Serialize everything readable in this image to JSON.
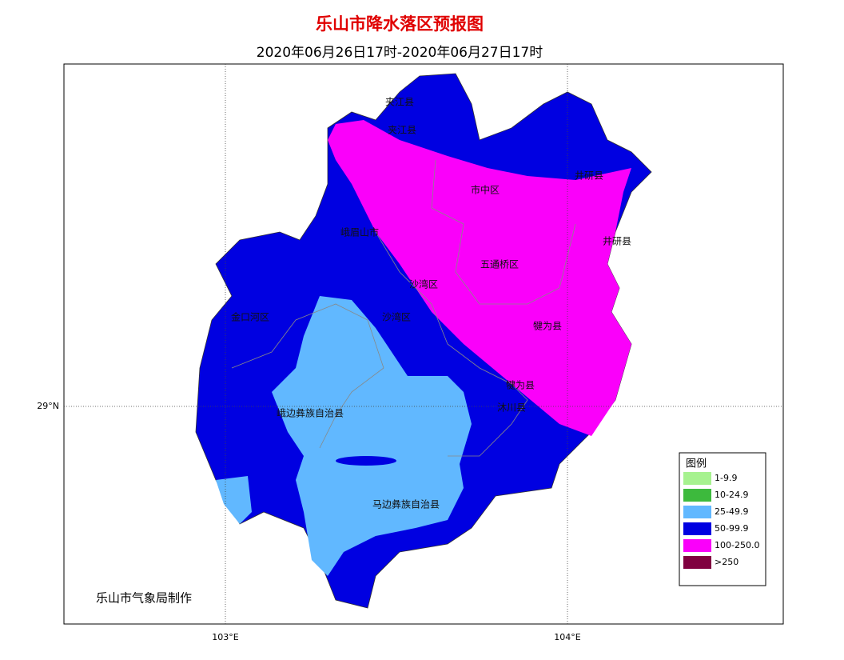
{
  "header": {
    "title": "乐山市降水落区预报图",
    "subtitle": "2020年06月26日17时-2020年06月27日17时"
  },
  "map": {
    "grid_labels": [
      "103°E",
      "104°E",
      "29°N"
    ],
    "region_labels": [
      "夹江县",
      "夹江县",
      "市中区",
      "井研县",
      "井研县",
      "峨眉山市",
      "五通桥区",
      "沙湾区",
      "金口河区",
      "沙湾区",
      "犍为县",
      "犍为县",
      "沐川县",
      "峨边彝族自治县",
      "马边彝族自治县"
    ]
  },
  "legend": {
    "title": "图例",
    "items": [
      {
        "label": "1-9.9",
        "color": "#a6f28f"
      },
      {
        "label": "10-24.9",
        "color": "#3dba3d"
      },
      {
        "label": "25-49.9",
        "color": "#61b8ff"
      },
      {
        "label": "50-99.9",
        "color": "#0000e1"
      },
      {
        "label": "100-250.0",
        "color": "#fa00fa"
      },
      {
        "label": ">250",
        "color": "#800040"
      }
    ]
  },
  "credit": "乐山市气象局制作"
}
